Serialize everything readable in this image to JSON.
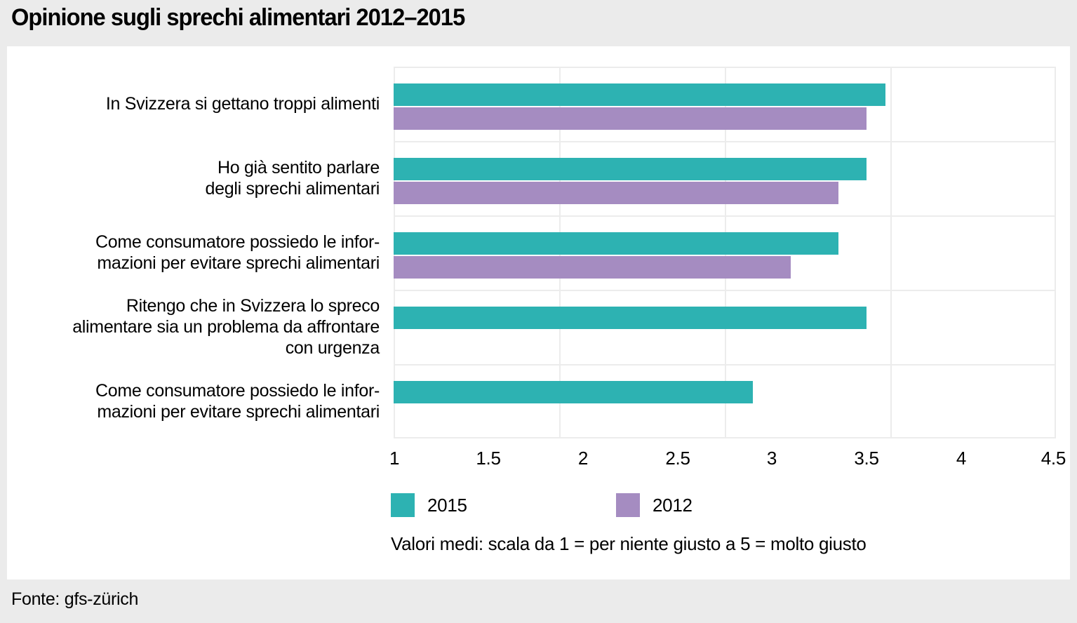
{
  "page": {
    "title": "Opinione sugli sprechi alimentari 2012–2015",
    "source": "Fonte: gfs-zürich"
  },
  "chart_data": {
    "type": "bar",
    "orientation": "horizontal",
    "title": "Opinione sugli sprechi alimentari 2012–2015",
    "categories": [
      "In Svizzera si gettano troppi alimenti",
      "Ho già sentito parlare degli sprechi alimentari",
      "Come consumatore possiedo le informazioni per evitare sprechi alimentari",
      "Ritengo che in Svizzera lo spreco alimentare sia un problema da affrontare con urgenza",
      "Come consumatore possiedo le informazioni per evitare sprechi alimentari"
    ],
    "category_display_lines": [
      [
        "In Svizzera si gettano troppi alimenti"
      ],
      [
        "Ho già sentito parlare",
        "degli sprechi alimentari"
      ],
      [
        "Come consumatore possiedo le infor-",
        "mazioni per evitare sprechi alimentari"
      ],
      [
        "Ritengo che in Svizzera lo spreco",
        "alimentare sia un problema da affrontare",
        "con urgenza"
      ],
      [
        "Come consumatore possiedo le infor-",
        "mazioni per evitare sprechi alimentari"
      ]
    ],
    "series": [
      {
        "name": "2015",
        "color": "#2db2b2",
        "values": [
          3.6,
          3.5,
          3.35,
          3.5,
          2.9
        ]
      },
      {
        "name": "2012",
        "color": "#a58cc1",
        "values": [
          3.5,
          3.35,
          3.1,
          null,
          null
        ]
      }
    ],
    "xlim": [
      1,
      4.5
    ],
    "x_tick_labels": [
      "1",
      "1.5",
      "2",
      "2.5",
      "3",
      "3.5",
      "4",
      "4.5"
    ],
    "grid": true,
    "legend_position": "bottom",
    "note": "Valori medi: scala da 1 = per niente giusto a 5 = molto giusto"
  },
  "style": {
    "background": "#ebebeb",
    "panel_background": "#ffffff",
    "gridline_color": "#ececec",
    "text_color": "#000000"
  }
}
